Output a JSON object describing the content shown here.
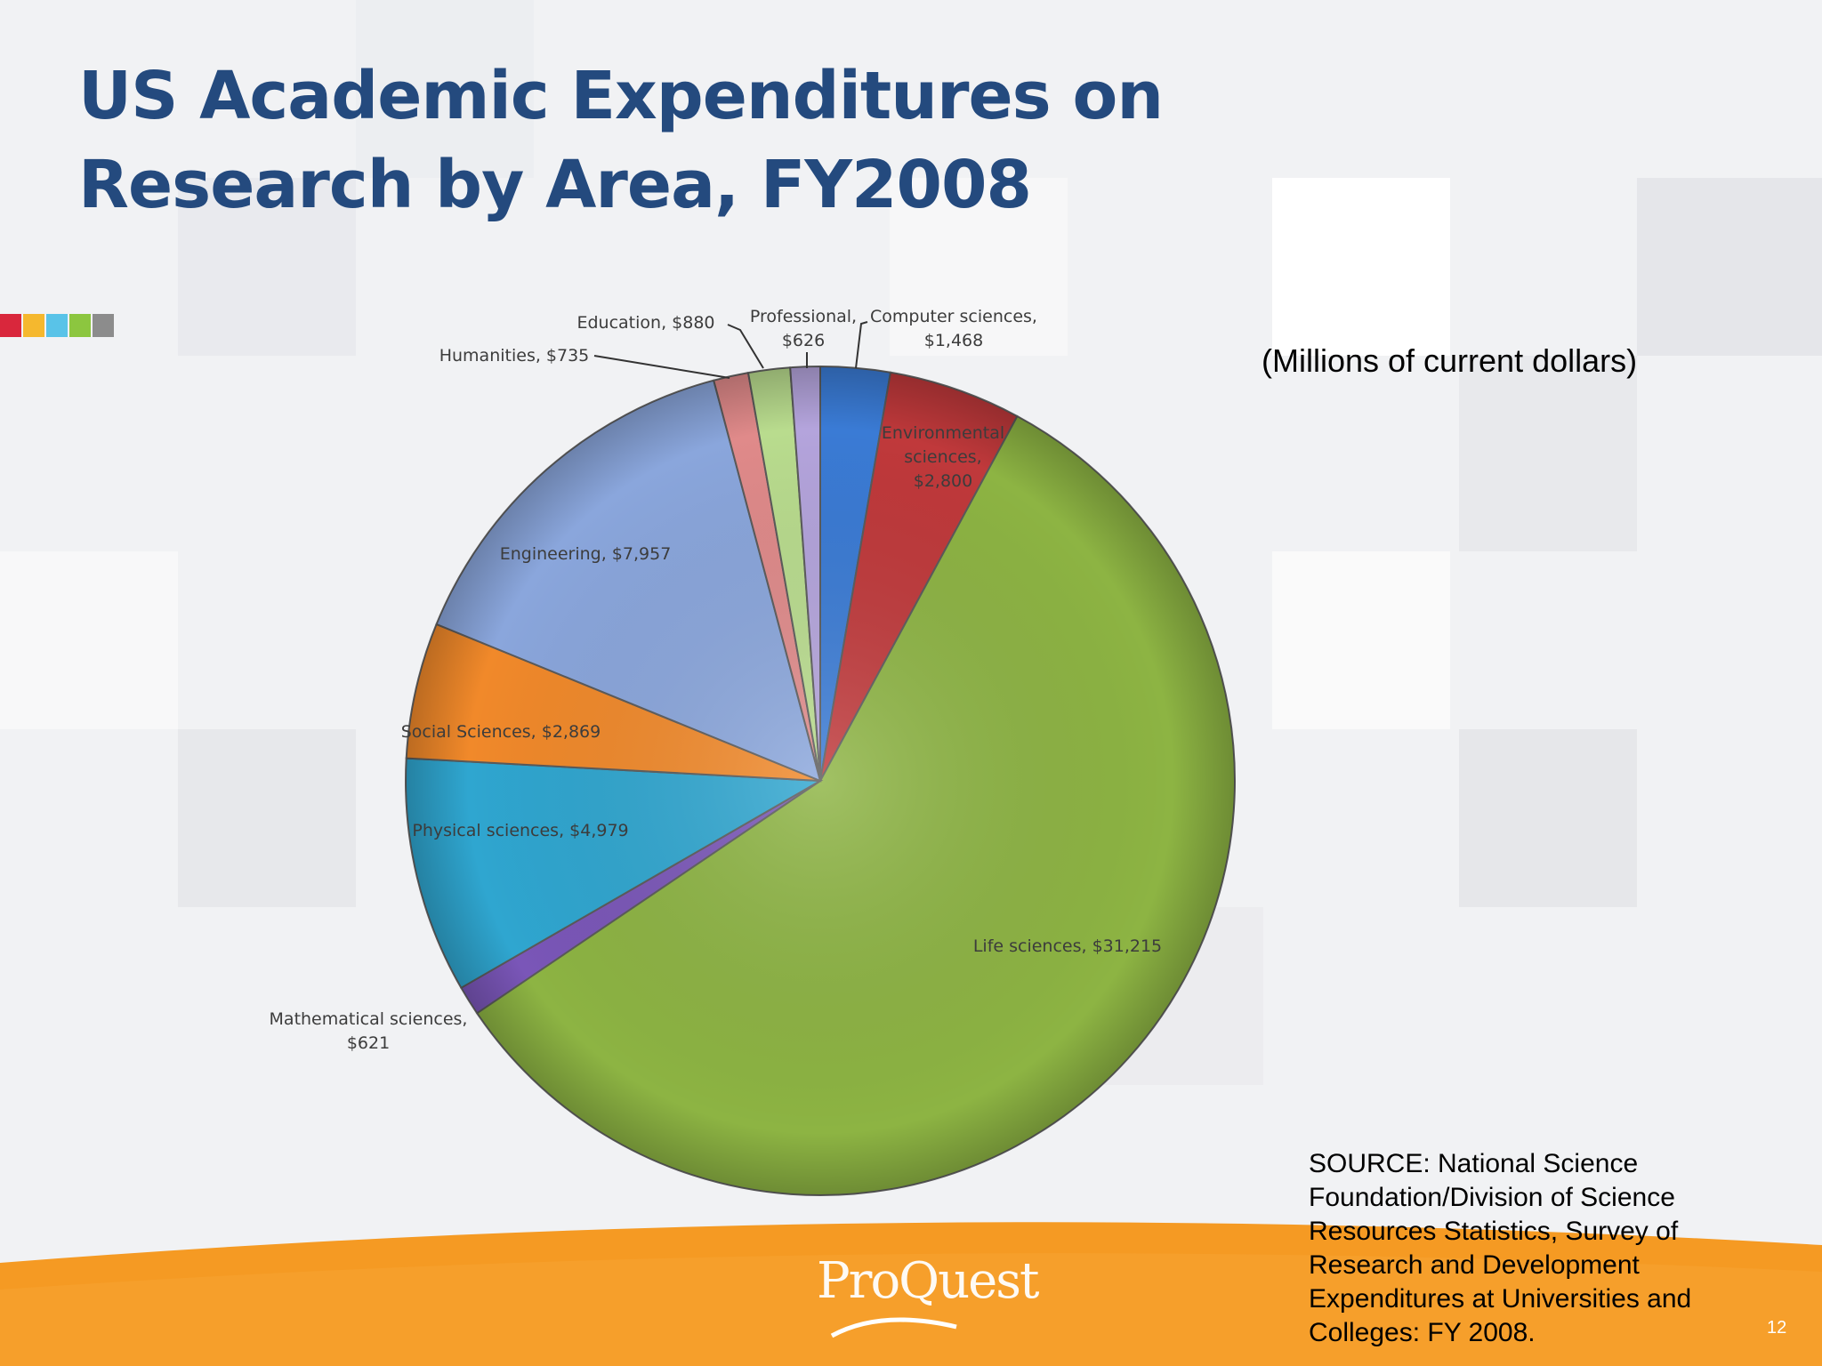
{
  "slide": {
    "title": "US Academic Expenditures on Research by Area, FY2008",
    "subtitle": "(Millions of current dollars)",
    "source": "SOURCE:  National Science Foundation/Division of Science Resources Statistics, Survey of Research and Development Expenditures at Universities and Colleges: FY 2008.",
    "page_number": "12",
    "logo_text": "ProQuest",
    "accent_colors": [
      "#d9273c",
      "#f5b82e",
      "#59c3e8",
      "#8cc63f",
      "#8c8c8c"
    ],
    "footer_color": "#f59a23"
  },
  "chart_data": {
    "type": "pie",
    "title": "US Academic Expenditures on Research by Area, FY2008",
    "unit": "(Millions of current dollars)",
    "slices": [
      {
        "label": "Computer sciences,",
        "value_label": "$1,468",
        "value": 1468,
        "color": "#3a7bd5"
      },
      {
        "label": "Environmental sciences,",
        "value_label": "$2,800",
        "value": 2800,
        "color": "#c0393b"
      },
      {
        "label": "Life sciences,",
        "value_label": "$31,215",
        "value": 31215,
        "color": "#8db443"
      },
      {
        "label": "Mathematical sciences,",
        "value_label": "$621",
        "value": 621,
        "color": "#7a56b8"
      },
      {
        "label": "Physical sciences,",
        "value_label": "$4,979",
        "value": 4979,
        "color": "#2fa6d0"
      },
      {
        "label": "Social Sciences,",
        "value_label": "$2,869",
        "value": 2869,
        "color": "#f1892a"
      },
      {
        "label": "Engineering,",
        "value_label": "$7,957",
        "value": 7957,
        "color": "#8aa6dc"
      },
      {
        "label": "Humanities,",
        "value_label": "$735",
        "value": 735,
        "color": "#e08a8a"
      },
      {
        "label": "Education,",
        "value_label": "$880",
        "value": 880,
        "color": "#b9dc8e"
      },
      {
        "label": "Professional,",
        "value_label": "$626",
        "value": 626,
        "color": "#b4a4dc"
      }
    ]
  }
}
